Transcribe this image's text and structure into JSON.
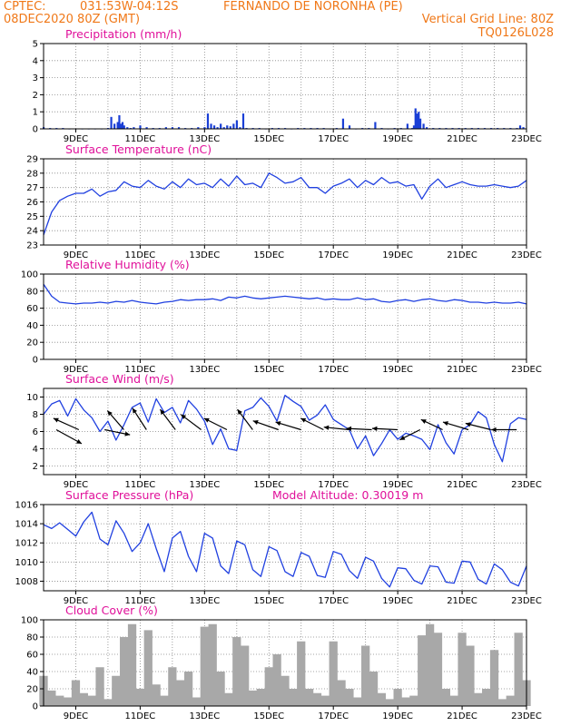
{
  "header": {
    "line1_left": "CPTEC:",
    "line1_coords": "031:53W-04:12S",
    "line1_station": "FERNANDO DE NORONHA (PE)",
    "line2_left": "08DEC2020 80Z (GMT)",
    "grid_note": "Vertical Grid Line: 80Z",
    "code": "TQ0126L028"
  },
  "colors": {
    "header_text": "#f07818",
    "panel_title": "#e0109a",
    "series_line": "#2040e0",
    "precip_bar": "#1a3fd6",
    "cloud_bar": "#a8a8a8",
    "wind_arrow": "#000000",
    "grid": "#888888"
  },
  "x_axis": {
    "unit": "days",
    "range": [
      8,
      23
    ],
    "tick_positions": [
      9,
      11,
      13,
      15,
      17,
      19,
      21,
      23
    ],
    "tick_labels": [
      "9DEC",
      "11DEC",
      "13DEC",
      "15DEC",
      "17DEC",
      "19DEC",
      "21DEC",
      "23DEC"
    ],
    "grid_positions": [
      9,
      10,
      11,
      12,
      13,
      14,
      15,
      16,
      17,
      18,
      19,
      20,
      21,
      22
    ],
    "grid": "dotted"
  },
  "chart_data": [
    {
      "id": "precip",
      "type": "bar",
      "title": "Precipitation (mm/h)",
      "ylim": [
        0,
        5
      ],
      "yticks": [
        0,
        1,
        2,
        3,
        4,
        5
      ],
      "series": [
        {
          "x": [
            8.0,
            8.2,
            8.4,
            8.6,
            8.8,
            9.0,
            9.2,
            9.4,
            9.6,
            9.8,
            10.0,
            10.1,
            10.2,
            10.3,
            10.35,
            10.4,
            10.45,
            10.5,
            10.6,
            10.7,
            10.8,
            11.0,
            11.2,
            11.4,
            11.6,
            11.8,
            12.0,
            12.2,
            12.4,
            12.6,
            12.8,
            13.0,
            13.1,
            13.2,
            13.3,
            13.4,
            13.5,
            13.6,
            13.7,
            13.8,
            13.9,
            14.0,
            14.1,
            14.2,
            14.3,
            14.5,
            14.7,
            14.9,
            15.1,
            15.3,
            15.5,
            15.7,
            15.9,
            16.1,
            16.3,
            16.5,
            16.7,
            16.9,
            17.1,
            17.3,
            17.5,
            17.7,
            17.9,
            18.1,
            18.3,
            18.5,
            18.7,
            18.9,
            19.1,
            19.3,
            19.45,
            19.5,
            19.55,
            19.6,
            19.65,
            19.7,
            19.8,
            19.9,
            20.1,
            20.3,
            20.5,
            20.7,
            20.9,
            21.1,
            21.3,
            21.5,
            21.7,
            21.9,
            22.1,
            22.3,
            22.5,
            22.7,
            22.8,
            22.9
          ],
          "values": [
            0.1,
            0.05,
            0.05,
            0.05,
            0.0,
            0.0,
            0.0,
            0.0,
            0.0,
            0.0,
            0.05,
            0.7,
            0.3,
            0.4,
            0.8,
            0.3,
            0.4,
            0.2,
            0.1,
            0.05,
            0.1,
            0.2,
            0.1,
            0.05,
            0.05,
            0.1,
            0.1,
            0.1,
            0.05,
            0.05,
            0.1,
            0.1,
            0.9,
            0.3,
            0.2,
            0.1,
            0.3,
            0.1,
            0.2,
            0.15,
            0.3,
            0.5,
            0.1,
            0.9,
            0.05,
            0.05,
            0.05,
            0.0,
            0.05,
            0.05,
            0.05,
            0.0,
            0.05,
            0.05,
            0.05,
            0.05,
            0.05,
            0.0,
            0.05,
            0.6,
            0.2,
            0.0,
            0.05,
            0.05,
            0.4,
            0.05,
            0.0,
            0.05,
            0.05,
            0.3,
            0.05,
            0.2,
            1.2,
            0.9,
            1.0,
            0.6,
            0.3,
            0.1,
            0.05,
            0.05,
            0.05,
            0.05,
            0.05,
            0.05,
            0.05,
            0.05,
            0.05,
            0.05,
            0.05,
            0.05,
            0.05,
            0.05,
            0.2,
            0.1
          ]
        }
      ]
    },
    {
      "id": "temp",
      "type": "line",
      "title": "Surface Temperature (nC)",
      "ylim": [
        23,
        29
      ],
      "yticks": [
        23,
        24,
        25,
        26,
        27,
        28,
        29
      ],
      "series": [
        {
          "x": [
            8.0,
            8.25,
            8.5,
            8.75,
            9.0,
            9.25,
            9.5,
            9.75,
            10.0,
            10.25,
            10.5,
            10.75,
            11.0,
            11.25,
            11.5,
            11.75,
            12.0,
            12.25,
            12.5,
            12.75,
            13.0,
            13.25,
            13.5,
            13.75,
            14.0,
            14.25,
            14.5,
            14.75,
            15.0,
            15.25,
            15.5,
            15.75,
            16.0,
            16.25,
            16.5,
            16.75,
            17.0,
            17.25,
            17.5,
            17.75,
            18.0,
            18.25,
            18.5,
            18.75,
            19.0,
            19.25,
            19.5,
            19.75,
            20.0,
            20.25,
            20.5,
            20.75,
            21.0,
            21.25,
            21.5,
            21.75,
            22.0,
            22.25,
            22.5,
            22.75,
            23.0
          ],
          "values": [
            23.7,
            25.3,
            26.1,
            26.4,
            26.6,
            26.6,
            26.9,
            26.4,
            26.7,
            26.8,
            27.4,
            27.1,
            27.0,
            27.5,
            27.1,
            26.9,
            27.4,
            27.0,
            27.6,
            27.2,
            27.3,
            27.0,
            27.6,
            27.1,
            27.8,
            27.2,
            27.3,
            27.0,
            28.0,
            27.7,
            27.3,
            27.4,
            27.7,
            27.0,
            27.0,
            26.6,
            27.1,
            27.3,
            27.6,
            27.0,
            27.5,
            27.2,
            27.7,
            27.3,
            27.4,
            27.1,
            27.2,
            26.2,
            27.1,
            27.6,
            27.0,
            27.2,
            27.4,
            27.2,
            27.1,
            27.1,
            27.2,
            27.1,
            27.0,
            27.1,
            27.5
          ]
        }
      ]
    },
    {
      "id": "rh",
      "type": "line",
      "title": "Relative Humidity (%)",
      "ylim": [
        0,
        100
      ],
      "yticks": [
        0,
        20,
        40,
        60,
        80,
        100
      ],
      "series": [
        {
          "x": [
            8.0,
            8.25,
            8.5,
            8.75,
            9.0,
            9.25,
            9.5,
            9.75,
            10.0,
            10.25,
            10.5,
            10.75,
            11.0,
            11.25,
            11.5,
            11.75,
            12.0,
            12.25,
            12.5,
            12.75,
            13.0,
            13.25,
            13.5,
            13.75,
            14.0,
            14.25,
            14.5,
            14.75,
            15.0,
            15.25,
            15.5,
            15.75,
            16.0,
            16.25,
            16.5,
            16.75,
            17.0,
            17.25,
            17.5,
            17.75,
            18.0,
            18.25,
            18.5,
            18.75,
            19.0,
            19.25,
            19.5,
            19.75,
            20.0,
            20.25,
            20.5,
            20.75,
            21.0,
            21.25,
            21.5,
            21.75,
            22.0,
            22.25,
            22.5,
            22.75,
            23.0
          ],
          "values": [
            88,
            74,
            67,
            66,
            65,
            66,
            66,
            67,
            66,
            68,
            67,
            69,
            67,
            66,
            65,
            67,
            68,
            70,
            69,
            70,
            70,
            71,
            69,
            73,
            72,
            74,
            72,
            71,
            72,
            73,
            74,
            73,
            72,
            71,
            72,
            70,
            71,
            70,
            70,
            72,
            70,
            71,
            68,
            67,
            69,
            70,
            68,
            70,
            71,
            69,
            68,
            70,
            69,
            67,
            67,
            66,
            67,
            66,
            66,
            67,
            65
          ]
        }
      ]
    },
    {
      "id": "wind",
      "type": "line",
      "title": "Surface Wind (m/s)",
      "ylim": [
        1,
        11
      ],
      "yticks": [
        2,
        4,
        6,
        8,
        10
      ],
      "series": [
        {
          "x": [
            8.0,
            8.25,
            8.5,
            8.75,
            9.0,
            9.25,
            9.5,
            9.75,
            10.0,
            10.25,
            10.5,
            10.75,
            11.0,
            11.25,
            11.5,
            11.75,
            12.0,
            12.25,
            12.5,
            12.75,
            13.0,
            13.25,
            13.5,
            13.75,
            14.0,
            14.25,
            14.5,
            14.75,
            15.0,
            15.25,
            15.5,
            15.75,
            16.0,
            16.25,
            16.5,
            16.75,
            17.0,
            17.25,
            17.5,
            17.75,
            18.0,
            18.25,
            18.5,
            18.75,
            19.0,
            19.25,
            19.5,
            19.75,
            20.0,
            20.25,
            20.5,
            20.75,
            21.0,
            21.25,
            21.5,
            21.75,
            22.0,
            22.25,
            22.5,
            22.75,
            23.0
          ],
          "values": [
            8.0,
            9.2,
            9.6,
            7.8,
            9.8,
            8.5,
            7.6,
            6.0,
            7.2,
            5.0,
            6.8,
            8.8,
            9.3,
            7.1,
            9.8,
            8.2,
            8.8,
            7.0,
            9.6,
            8.6,
            7.2,
            4.5,
            6.3,
            4.0,
            3.8,
            8.4,
            8.8,
            9.9,
            8.9,
            7.2,
            10.2,
            9.5,
            8.9,
            7.3,
            7.9,
            9.1,
            7.4,
            6.8,
            6.2,
            4.0,
            5.5,
            3.2,
            4.6,
            6.2,
            5.1,
            5.8,
            5.5,
            5.1,
            3.9,
            6.8,
            4.7,
            3.4,
            6.2,
            6.8,
            8.3,
            7.6,
            4.5,
            2.5,
            6.9,
            7.6,
            7.4
          ]
        }
      ],
      "vectors": [
        {
          "x": 8.0,
          "u": 1.0,
          "v": -0.55
        },
        {
          "x": 8.7,
          "u": -1.0,
          "v": 0.45
        },
        {
          "x": 9.5,
          "u": 1.0,
          "v": -0.2
        },
        {
          "x": 10.1,
          "u": -0.65,
          "v": 0.75
        },
        {
          "x": 10.8,
          "u": -0.55,
          "v": 0.85
        },
        {
          "x": 11.7,
          "u": -0.6,
          "v": 0.8
        },
        {
          "x": 12.5,
          "u": -0.8,
          "v": 0.6
        },
        {
          "x": 13.3,
          "u": -0.9,
          "v": 0.45
        },
        {
          "x": 14.1,
          "u": -0.6,
          "v": 0.8
        },
        {
          "x": 14.9,
          "u": -1.0,
          "v": 0.35
        },
        {
          "x": 15.6,
          "u": -1.0,
          "v": 0.3
        },
        {
          "x": 16.3,
          "u": -0.9,
          "v": 0.45
        },
        {
          "x": 17.1,
          "u": -1.0,
          "v": 0.1
        },
        {
          "x": 17.8,
          "u": -1.0,
          "v": 0.05
        },
        {
          "x": 18.6,
          "u": -1.0,
          "v": 0.05
        },
        {
          "x": 19.3,
          "u": -0.8,
          "v": -0.4
        },
        {
          "x": 20.0,
          "u": -0.85,
          "v": 0.4
        },
        {
          "x": 20.8,
          "u": -1.0,
          "v": 0.3
        },
        {
          "x": 21.5,
          "u": -1.0,
          "v": 0.25
        },
        {
          "x": 22.3,
          "u": -1.0,
          "v": 0.0
        }
      ]
    },
    {
      "id": "pres",
      "type": "line",
      "title": "Surface Pressure (hPa)",
      "annotation": "Model Altitude: 0.30019 m",
      "ylim": [
        1007,
        1016
      ],
      "yticks": [
        1008,
        1010,
        1012,
        1014,
        1016
      ],
      "series": [
        {
          "x": [
            8.0,
            8.25,
            8.5,
            8.75,
            9.0,
            9.25,
            9.5,
            9.75,
            10.0,
            10.25,
            10.5,
            10.75,
            11.0,
            11.25,
            11.5,
            11.75,
            12.0,
            12.25,
            12.5,
            12.75,
            13.0,
            13.25,
            13.5,
            13.75,
            14.0,
            14.25,
            14.5,
            14.75,
            15.0,
            15.25,
            15.5,
            15.75,
            16.0,
            16.25,
            16.5,
            16.75,
            17.0,
            17.25,
            17.5,
            17.75,
            18.0,
            18.25,
            18.5,
            18.75,
            19.0,
            19.25,
            19.5,
            19.75,
            20.0,
            20.25,
            20.5,
            20.75,
            21.0,
            21.25,
            21.5,
            21.75,
            22.0,
            22.25,
            22.5,
            22.75,
            23.0
          ],
          "values": [
            1013.9,
            1013.5,
            1014.1,
            1013.4,
            1012.7,
            1014.2,
            1015.2,
            1012.4,
            1011.8,
            1014.3,
            1013.0,
            1011.1,
            1012.0,
            1014.0,
            1011.4,
            1009.0,
            1012.5,
            1013.2,
            1010.6,
            1009.0,
            1013.0,
            1012.5,
            1009.6,
            1008.8,
            1012.2,
            1011.8,
            1009.2,
            1008.5,
            1011.6,
            1011.2,
            1009.0,
            1008.5,
            1011.0,
            1010.6,
            1008.6,
            1008.4,
            1011.1,
            1010.8,
            1009.1,
            1008.3,
            1010.5,
            1010.1,
            1008.3,
            1007.4,
            1009.4,
            1009.3,
            1008.1,
            1007.7,
            1009.6,
            1009.5,
            1007.9,
            1007.8,
            1010.1,
            1010.0,
            1008.2,
            1007.7,
            1009.8,
            1009.2,
            1007.9,
            1007.5,
            1009.6
          ]
        }
      ]
    },
    {
      "id": "cloud",
      "type": "bar",
      "title": "Cloud Cover (%)",
      "ylim": [
        0,
        100
      ],
      "yticks": [
        0,
        20,
        40,
        60,
        80,
        100
      ],
      "series": [
        {
          "x": [
            8.0,
            8.25,
            8.5,
            8.75,
            9.0,
            9.25,
            9.5,
            9.75,
            10.0,
            10.25,
            10.5,
            10.75,
            11.0,
            11.25,
            11.5,
            11.75,
            12.0,
            12.25,
            12.5,
            12.75,
            13.0,
            13.25,
            13.5,
            13.75,
            14.0,
            14.25,
            14.5,
            14.75,
            15.0,
            15.25,
            15.5,
            15.75,
            16.0,
            16.25,
            16.5,
            16.75,
            17.0,
            17.25,
            17.5,
            17.75,
            18.0,
            18.25,
            18.5,
            18.75,
            19.0,
            19.25,
            19.5,
            19.75,
            20.0,
            20.25,
            20.5,
            20.75,
            21.0,
            21.25,
            21.5,
            21.75,
            22.0,
            22.25,
            22.5,
            22.75,
            23.0
          ],
          "values": [
            35,
            18,
            12,
            10,
            30,
            15,
            12,
            45,
            8,
            35,
            80,
            95,
            20,
            88,
            25,
            12,
            45,
            30,
            40,
            10,
            92,
            95,
            40,
            15,
            80,
            70,
            18,
            20,
            45,
            60,
            35,
            20,
            75,
            20,
            15,
            12,
            75,
            30,
            20,
            10,
            70,
            40,
            15,
            8,
            20,
            10,
            12,
            82,
            95,
            85,
            20,
            12,
            85,
            70,
            15,
            20,
            65,
            8,
            12,
            85,
            30
          ]
        }
      ]
    }
  ]
}
